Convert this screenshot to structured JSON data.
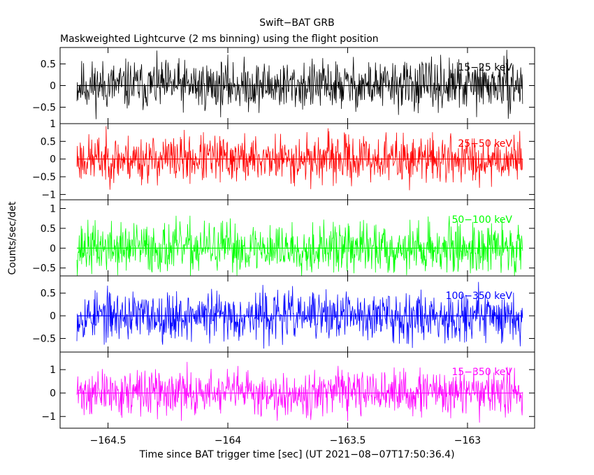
{
  "chart_data": {
    "type": "line",
    "title": "Swift−BAT GRB",
    "subtitle": "Maskweighted Lightcurve (2 ms binning) using the flight position",
    "xlabel": "Time since BAT trigger time [sec] (UT 2021−08−07T17:50:36.4)",
    "ylabel": "Counts/sec/det",
    "xlim": [
      -164.7,
      -162.72
    ],
    "x_start": -164.63,
    "x_end": -162.77,
    "x_step": 0.002,
    "x_ticks": [
      {
        "value": -164.5,
        "label": "−164.5"
      },
      {
        "value": -164.0,
        "label": "−164"
      },
      {
        "value": -163.5,
        "label": "−163.5"
      },
      {
        "value": -163.0,
        "label": "−163"
      }
    ],
    "panels": [
      {
        "name": "15−25 keV",
        "color": "#000000",
        "ylim": [
          -0.88,
          0.88
        ],
        "amplitude": 0.85,
        "seed": 11,
        "y_ticks": [
          {
            "value": 0.5,
            "label": "0.5"
          },
          {
            "value": 0.0,
            "label": "0"
          },
          {
            "value": -0.5,
            "label": "−0.5"
          }
        ]
      },
      {
        "name": "25−50 keV",
        "color": "#ff0000",
        "ylim": [
          -1.15,
          1.0
        ],
        "amplitude": 1.0,
        "seed": 23,
        "y_ticks": [
          {
            "value": 1.0,
            "label": "1"
          },
          {
            "value": 0.5,
            "label": "0.5"
          },
          {
            "value": 0.0,
            "label": "0"
          },
          {
            "value": -0.5,
            "label": "−0.5"
          },
          {
            "value": -1.0,
            "label": "−1"
          }
        ]
      },
      {
        "name": "50−100 keV",
        "color": "#00ff00",
        "ylim": [
          -0.7,
          1.22
        ],
        "amplitude": 0.95,
        "seed": 37,
        "y_ticks": [
          {
            "value": 1.0,
            "label": "1"
          },
          {
            "value": 0.5,
            "label": "0.5"
          },
          {
            "value": 0.0,
            "label": "0"
          },
          {
            "value": -0.5,
            "label": "−0.5"
          }
        ]
      },
      {
        "name": "100−350 keV",
        "color": "#0000ff",
        "ylim": [
          -0.8,
          0.88
        ],
        "amplitude": 0.8,
        "seed": 53,
        "y_ticks": [
          {
            "value": 0.5,
            "label": "0.5"
          },
          {
            "value": 0.0,
            "label": "0"
          },
          {
            "value": -0.5,
            "label": "−0.5"
          }
        ]
      },
      {
        "name": "15−350 keV",
        "color": "#ff00ff",
        "ylim": [
          -1.5,
          1.75
        ],
        "amplitude": 1.4,
        "seed": 71,
        "y_ticks": [
          {
            "value": 1.0,
            "label": "1"
          },
          {
            "value": 0.0,
            "label": "0"
          },
          {
            "value": -1.0,
            "label": "−1"
          }
        ]
      }
    ]
  }
}
